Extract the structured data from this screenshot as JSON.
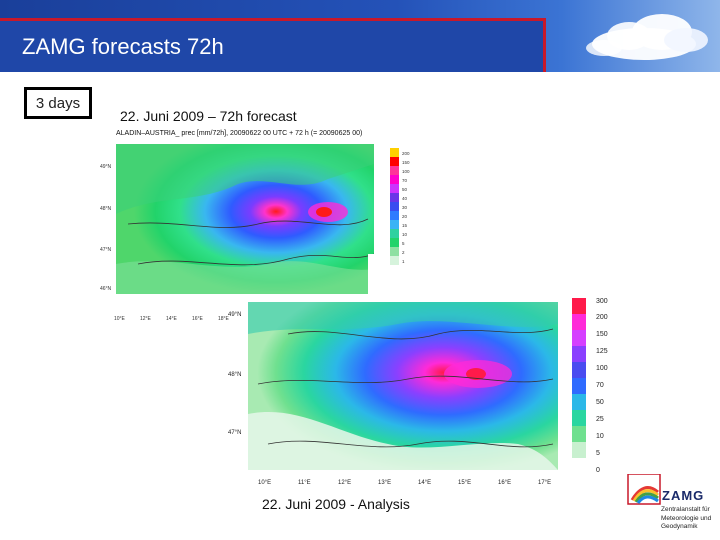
{
  "slide": {
    "title": "ZAMG forecasts 72h",
    "days_label": "3 days",
    "forecast_caption": "22. Juni 2009 – 72h forecast",
    "analysis_caption": "22. Juni 2009 - Analysis"
  },
  "forecast_map": {
    "header": "ALADIN–AUSTRIA_ prec [mm/72h], 20090622 00 UTC + 72 h (= 20090625 00)",
    "lat_labels": [
      "49°N",
      "48°N",
      "47°N",
      "46°N"
    ],
    "lon_labels": [
      "10°E",
      "12°E",
      "14°E",
      "16°E",
      "18°E"
    ],
    "legend_values": [
      "200",
      "150",
      "100",
      "70",
      "50",
      "40",
      "30",
      "20",
      "15",
      "10",
      "5",
      "2",
      "1"
    ]
  },
  "analysis_map": {
    "lat_labels": [
      "49°N",
      "48°N",
      "47°N"
    ],
    "lon_labels": [
      "10°E",
      "11°E",
      "12°E",
      "13°E",
      "14°E",
      "15°E",
      "16°E",
      "17°E"
    ],
    "legend_values": [
      "300",
      "200",
      "150",
      "125",
      "100",
      "70",
      "50",
      "25",
      "10",
      "5",
      "0"
    ]
  },
  "logo": {
    "name": "ZAMG",
    "subtitle_lines": [
      "Zentralanstalt für",
      "Meteorologie und",
      "Geodynamik"
    ]
  },
  "colors": {
    "banner_blue": "#1f47a8",
    "banner_red": "#c8182a"
  }
}
